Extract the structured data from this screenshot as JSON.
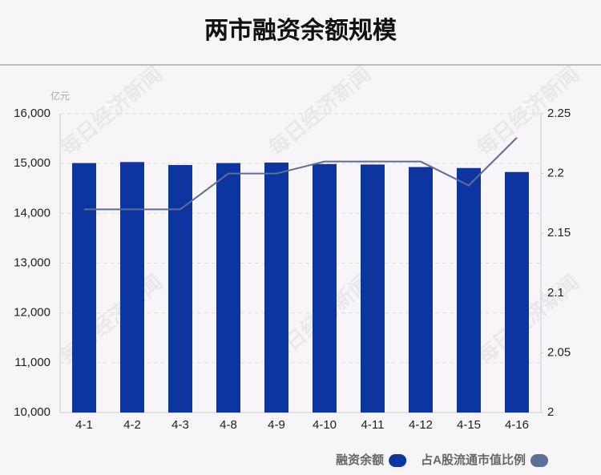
{
  "chart_data": {
    "type": "bar",
    "title": "两市融资余额规模",
    "y_unit": "亿元",
    "watermark": "每日经济新闻",
    "categories": [
      "4-1",
      "4-2",
      "4-3",
      "4-8",
      "4-9",
      "4-10",
      "4-11",
      "4-12",
      "4-15",
      "4-16"
    ],
    "series": [
      {
        "name": "融资余额",
        "type": "bar",
        "color": "#0d35a0",
        "values": [
          15010,
          15030,
          14970,
          15010,
          15020,
          14990,
          14980,
          14930,
          14910,
          14830
        ]
      },
      {
        "name": "占A股流通市值比例",
        "type": "line",
        "axis": "y2",
        "color": "#5c6e99",
        "values": [
          2.17,
          2.17,
          2.17,
          2.2,
          2.2,
          2.21,
          2.21,
          2.21,
          2.19,
          2.23
        ]
      }
    ],
    "ylim": [
      10000,
      16000
    ],
    "yticks": [
      {
        "value": 10000,
        "label": "10,000"
      },
      {
        "value": 11000,
        "label": "11,000"
      },
      {
        "value": 12000,
        "label": "12,000"
      },
      {
        "value": 13000,
        "label": "13,000"
      },
      {
        "value": 14000,
        "label": "14,000"
      },
      {
        "value": 15000,
        "label": "15,000"
      },
      {
        "value": 16000,
        "label": "16,000"
      }
    ],
    "y2lim": [
      2,
      2.25
    ],
    "y2ticks": [
      2,
      2.05,
      2.1,
      2.15,
      2.2,
      2.25
    ],
    "grid": true,
    "legend": "bottom-right"
  }
}
